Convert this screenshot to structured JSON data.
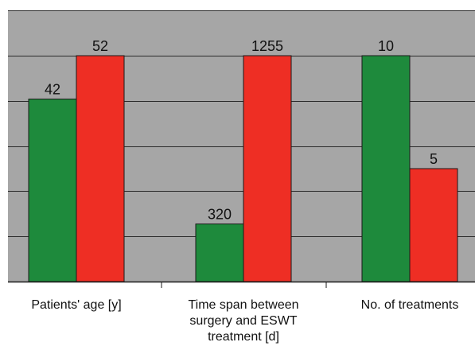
{
  "chart_data": {
    "type": "bar",
    "title": "",
    "xlabel": "",
    "ylabel": "",
    "grid": true,
    "legend": "none",
    "categories": [
      [
        "Patients' age [y]"
      ],
      [
        "Time span between",
        "surgery and ESWT",
        "treatment [d]"
      ],
      [
        "No. of treatments"
      ]
    ],
    "bars": [
      [
        {
          "label": "42",
          "level": 0.808,
          "color": "#1e8a3c"
        },
        {
          "label": "52",
          "level": 1.0,
          "color": "#ee2e24"
        }
      ],
      [
        {
          "label": "320",
          "level": 0.255,
          "color": "#1e8a3c"
        },
        {
          "label": "1255",
          "level": 1.0,
          "color": "#ee2e24"
        }
      ],
      [
        {
          "label": "10",
          "level": 1.0,
          "color": "#1e8a3c"
        },
        {
          "label": "5",
          "level": 0.5,
          "color": "#ee2e24"
        }
      ]
    ],
    "gridline_levels": [
      0.2,
      0.4,
      0.6,
      0.8,
      1.0,
      1.2
    ],
    "colors": {
      "plot_background": "#a6a6a6",
      "gridline": "#2b2b2b",
      "axis": "#1a1a1a",
      "bar_outline": "#1a1a1a",
      "text": "#111111"
    }
  }
}
